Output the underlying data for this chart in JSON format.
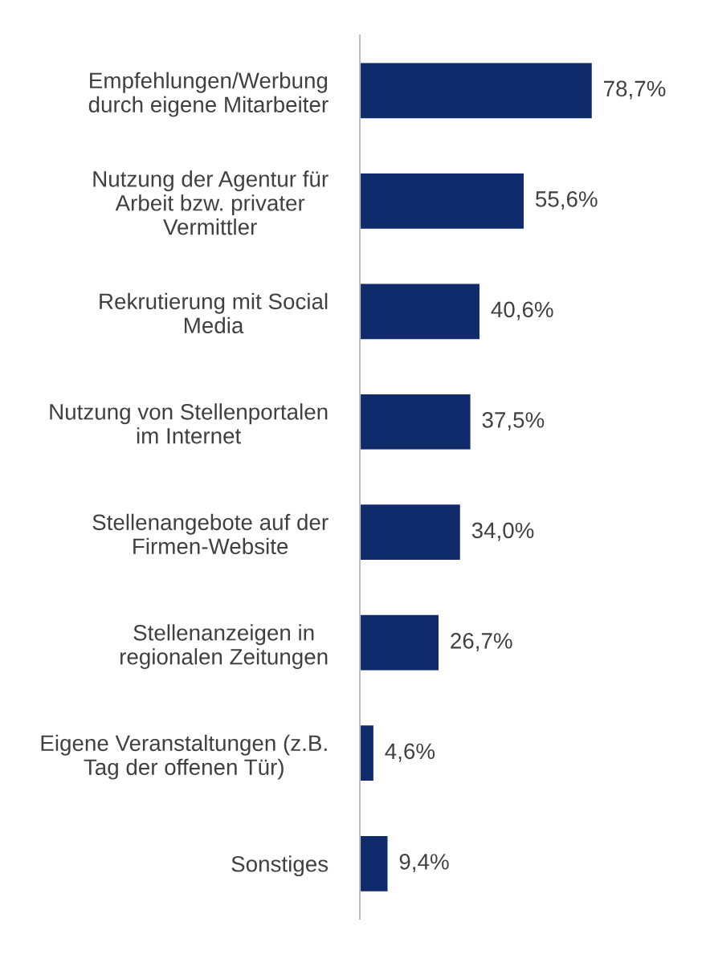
{
  "chart_data": {
    "type": "bar",
    "orientation": "horizontal",
    "categories": [
      "Empfehlungen/Werbung\ndurch eigene Mitarbeiter",
      "Nutzung der Agentur für\nArbeit bzw. privater\nVermittler",
      "Rekrutierung mit Social\nMedia",
      "Nutzung von Stellenportalen\nim Internet",
      "Stellenangebote auf der\nFirmen-Website",
      "Stellenanzeigen in\nregionalen Zeitungen",
      "Eigene Veranstaltungen (z.B.\nTag der offenen Tür)",
      "Sonstiges"
    ],
    "values": [
      78.7,
      55.6,
      40.6,
      37.5,
      34.0,
      26.7,
      4.6,
      9.4
    ],
    "value_labels": [
      "78,7%",
      "55,6%",
      "40,6%",
      "37,5%",
      "34,0%",
      "26,7%",
      "4,6%",
      "9,4%"
    ],
    "color": "#0f2b6b",
    "grid": false,
    "legend": false
  }
}
